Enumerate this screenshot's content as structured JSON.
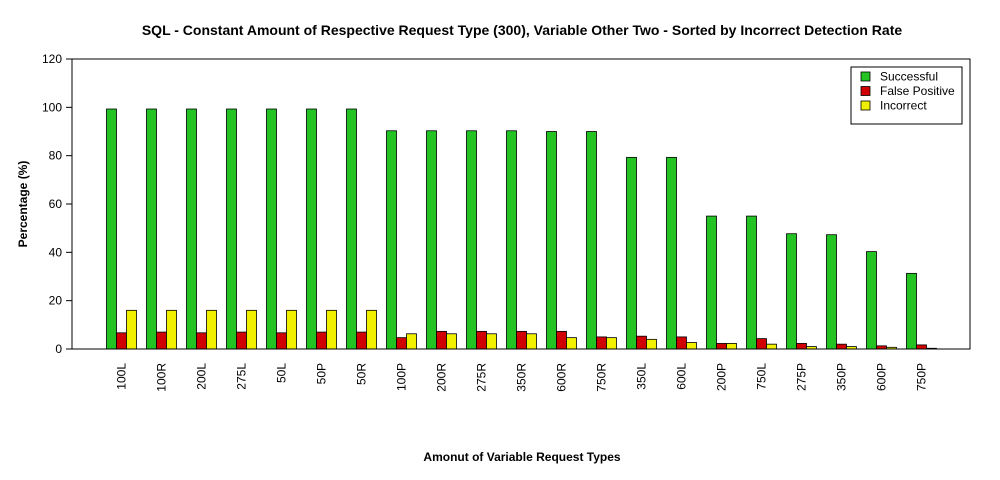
{
  "chart_data": {
    "type": "bar",
    "title": "SQL - Constant Amount of Respective Request Type (300), Variable Other Two - Sorted by Incorrect Detection Rate",
    "xlabel": "Amonut of Variable Request Types",
    "ylabel": "Percentage (%)",
    "ylim": [
      0,
      120
    ],
    "yticks": [
      0,
      20,
      40,
      60,
      80,
      100,
      120
    ],
    "grid": false,
    "legend_position": "top-right",
    "categories": [
      "100L",
      "100R",
      "200L",
      "275L",
      "50L",
      "50P",
      "50R",
      "100P",
      "200R",
      "275R",
      "350R",
      "600R",
      "750R",
      "350L",
      "600L",
      "200P",
      "750L",
      "275P",
      "350P",
      "600P",
      "750P"
    ],
    "series": [
      {
        "name": "Successful",
        "color": "#22c322",
        "values": [
          99.3,
          99.3,
          99.3,
          99.3,
          99.3,
          99.3,
          99.3,
          90.3,
          90.3,
          90.3,
          90.3,
          90.0,
          90.0,
          79.3,
          79.3,
          55.0,
          55.0,
          47.7,
          47.3,
          40.3,
          31.3
        ]
      },
      {
        "name": "False Positive",
        "color": "#d10000",
        "values": [
          6.7,
          7.0,
          6.7,
          7.0,
          6.7,
          7.0,
          7.0,
          4.7,
          7.3,
          7.3,
          7.3,
          7.3,
          5.0,
          5.3,
          5.0,
          2.3,
          4.3,
          2.3,
          2.0,
          1.3,
          1.7
        ]
      },
      {
        "name": "Incorrect",
        "color": "#f0f000",
        "values": [
          16.0,
          16.0,
          16.0,
          16.0,
          16.0,
          16.0,
          16.0,
          6.3,
          6.3,
          6.3,
          6.3,
          4.7,
          4.7,
          4.0,
          2.7,
          2.3,
          2.0,
          1.0,
          1.0,
          0.7,
          0.3
        ]
      }
    ]
  }
}
